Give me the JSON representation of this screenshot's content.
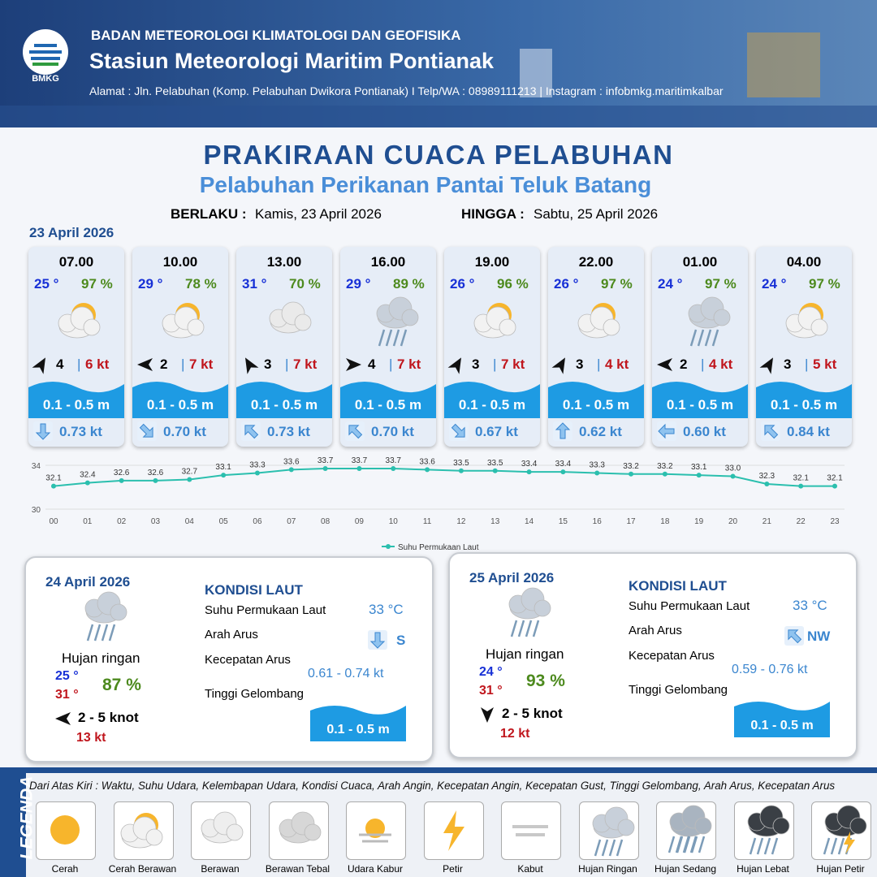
{
  "header": {
    "logo": "BMKG",
    "agency": "BADAN METEOROLOGI KLIMATOLOGI DAN GEOFISIKA",
    "station": "Stasiun Meteorologi Maritim Pontianak",
    "address": "Alamat : Jln. Pelabuhan (Komp. Pelabuhan Dwikora Pontianak) I Telp/WA : 08989111213 | Instagram : infobmkg.maritimkalbar"
  },
  "title": "PRAKIRAAN CUACA PELABUHAN",
  "subtitle": "Pelabuhan Perikanan Pantai Teluk Batang",
  "validity": {
    "from_label": "BERLAKU :",
    "from": "Kamis, 23 April 2026",
    "to_label": "HINGGA :",
    "to": "Sabtu, 25 April 2026"
  },
  "day1": {
    "date": "23 April 2026",
    "forecasts": [
      {
        "time": "07.00",
        "temp": "25 °",
        "humidity": "97 %",
        "wind": "4",
        "gust": "6 kt",
        "wave": "0.1 - 0.5 m",
        "current": "0.73 kt"
      },
      {
        "time": "10.00",
        "temp": "29 °",
        "humidity": "78 %",
        "wind": "2",
        "gust": "7 kt",
        "wave": "0.1 - 0.5 m",
        "current": "0.70 kt"
      },
      {
        "time": "13.00",
        "temp": "31 °",
        "humidity": "70 %",
        "wind": "3",
        "gust": "7 kt",
        "wave": "0.1 - 0.5 m",
        "current": "0.73 kt"
      },
      {
        "time": "16.00",
        "temp": "29 °",
        "humidity": "89 %",
        "wind": "4",
        "gust": "7 kt",
        "wave": "0.1 - 0.5 m",
        "current": "0.70 kt"
      },
      {
        "time": "19.00",
        "temp": "26 °",
        "humidity": "96 %",
        "wind": "3",
        "gust": "7 kt",
        "wave": "0.1 - 0.5 m",
        "current": "0.67 kt"
      },
      {
        "time": "22.00",
        "temp": "26 °",
        "humidity": "97 %",
        "wind": "3",
        "gust": "4 kt",
        "wave": "0.1 - 0.5 m",
        "current": "0.62 kt"
      },
      {
        "time": "01.00",
        "temp": "24 °",
        "humidity": "97 %",
        "wind": "2",
        "gust": "4 kt",
        "wave": "0.1 - 0.5 m",
        "current": "0.60 kt"
      },
      {
        "time": "04.00",
        "temp": "24 °",
        "humidity": "97 %",
        "wind": "3",
        "gust": "5 kt",
        "wave": "0.1 - 0.5 m",
        "current": "0.84 kt"
      }
    ]
  },
  "chart_data": {
    "type": "line",
    "categories": [
      "00",
      "01",
      "02",
      "03",
      "04",
      "05",
      "06",
      "07",
      "08",
      "09",
      "10",
      "11",
      "12",
      "13",
      "14",
      "15",
      "16",
      "17",
      "18",
      "19",
      "20",
      "21",
      "22",
      "23"
    ],
    "series": [
      {
        "name": "Suhu Permukaan Laut",
        "color": "#2bbfae",
        "values": [
          32.1,
          32.4,
          32.6,
          32.6,
          32.7,
          33.1,
          33.3,
          33.6,
          33.7,
          33.7,
          33.7,
          33.6,
          33.5,
          33.5,
          33.4,
          33.4,
          33.3,
          33.2,
          33.2,
          33.1,
          33.0,
          32.3,
          32.1,
          32.1
        ],
        "value_labels": [
          "32.1",
          "32.4",
          "32.6",
          "32.6",
          "32.7",
          "33.1",
          "33.3",
          "33.6",
          "33.7",
          "33.7",
          "33.7",
          "33.6",
          "33.5",
          "33.5",
          "33.4",
          "33.4",
          "33.3",
          "33.2",
          "33.2",
          "33.1",
          "33.0",
          "32.3",
          "32.1",
          "32.1"
        ]
      }
    ],
    "ylim": [
      30,
      34
    ],
    "yticks": [
      30,
      34
    ],
    "legend": "bottom"
  },
  "days": [
    {
      "date": "24 April 2026",
      "condition": "Hujan ringan",
      "temp_min": "25 °",
      "temp_max": "31 °",
      "humidity": "87 %",
      "wind": "2  - 5 knot",
      "gust": "13 kt",
      "sea_title": "KONDISI LAUT",
      "sst_label": "Suhu Permukaan Laut",
      "sst": "33 °C",
      "current_dir_label": "Arah Arus",
      "current_dir": "S",
      "current_speed_label": "Kecepatan Arus",
      "current_speed": "0.61 - 0.74 kt",
      "wave_label": "Tinggi Gelombang",
      "wave": "0.1 - 0.5 m"
    },
    {
      "date": "25 April 2026",
      "condition": "Hujan ringan",
      "temp_min": "24 °",
      "temp_max": "31 °",
      "humidity": "93 %",
      "wind": "2  - 5 knot",
      "gust": "12 kt",
      "sea_title": "KONDISI LAUT",
      "sst_label": "Suhu Permukaan Laut",
      "sst": "33 °C",
      "current_dir_label": "Arah Arus",
      "current_dir": "NW",
      "current_speed_label": "Kecepatan Arus",
      "current_speed": "0.59 - 0.76 kt",
      "wave_label": "Tinggi Gelombang",
      "wave": "0.1 - 0.5 m"
    }
  ],
  "legend": {
    "title": "LEGENDA",
    "description": "Dari Atas Kiri : Waktu, Suhu Udara, Kelembapan Udara, Kondisi Cuaca, Arah Angin, Kecepatan Angin, Kecepatan Gust, Tinggi Gelombang, Arah Arus, Kecepatan Arus",
    "items": [
      "Cerah",
      "Cerah Berawan",
      "Berawan",
      "Berawan Tebal",
      "Udara Kabur",
      "Petir",
      "Kabut",
      "Hujan Ringan",
      "Hujan Sedang",
      "Hujan Lebat",
      "Hujan Petir"
    ]
  }
}
